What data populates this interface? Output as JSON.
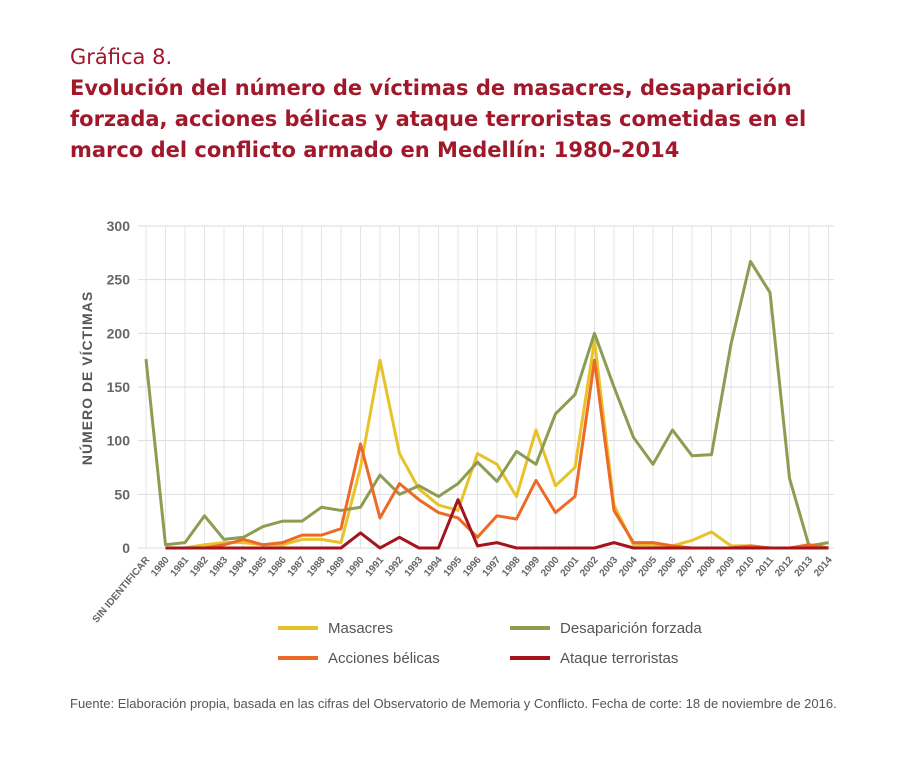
{
  "chart_data": {
    "type": "line",
    "kicker": "Gráfica 8.",
    "title": "Evolución del número de víctimas de masacres, desaparición forzada, acciones bélicas y ataque terroristas cometidas en el marco del conflicto armado en Medellín: 1980-2014",
    "y_label": "NÚMERO DE VÍCTIMAS",
    "source": "Fuente: Elaboración propia, basada en las cifras del Observatorio de Memoria y Conflicto. Fecha de corte: 18 de noviembre de 2016.",
    "categories": [
      "SIN IDENTIFICAR",
      "1980",
      "1981",
      "1982",
      "1983",
      "1984",
      "1985",
      "1986",
      "1987",
      "1988",
      "1989",
      "1990",
      "1991",
      "1992",
      "1993",
      "1994",
      "1995",
      "1996",
      "1997",
      "1998",
      "1999",
      "2000",
      "2001",
      "2002",
      "2003",
      "2004",
      "2005",
      "2006",
      "2007",
      "2008",
      "2009",
      "2010",
      "2011",
      "2012",
      "2013",
      "2014"
    ],
    "ylim": [
      0,
      300
    ],
    "yticks": [
      0,
      50,
      100,
      150,
      200,
      250,
      300
    ],
    "grid": true,
    "series": [
      {
        "name": "Masacres",
        "color": "#e8c229",
        "values": [
          null,
          0,
          0,
          3,
          5,
          5,
          3,
          3,
          8,
          8,
          5,
          75,
          175,
          88,
          55,
          40,
          35,
          88,
          78,
          48,
          110,
          58,
          75,
          193,
          40,
          3,
          3,
          2,
          7,
          15,
          2,
          2,
          0,
          0,
          2,
          0
        ]
      },
      {
        "name": "Desaparición forzada",
        "color": "#8c9d52",
        "values": [
          176,
          3,
          5,
          30,
          8,
          10,
          20,
          25,
          25,
          38,
          35,
          38,
          68,
          50,
          58,
          48,
          60,
          80,
          62,
          90,
          78,
          125,
          143,
          200,
          150,
          103,
          78,
          110,
          86,
          87,
          190,
          267,
          238,
          65,
          2,
          5
        ]
      },
      {
        "name": "Acciones bélicas",
        "color": "#ec6a25",
        "values": [
          null,
          0,
          0,
          0,
          3,
          8,
          3,
          5,
          12,
          12,
          18,
          97,
          28,
          60,
          45,
          33,
          28,
          10,
          30,
          27,
          63,
          33,
          48,
          175,
          35,
          5,
          5,
          2,
          0,
          0,
          0,
          2,
          0,
          0,
          3,
          0
        ]
      },
      {
        "name": "Ataque terroristas",
        "color": "#a3141d",
        "values": [
          null,
          0,
          0,
          0,
          0,
          0,
          0,
          0,
          0,
          0,
          0,
          14,
          0,
          10,
          0,
          0,
          45,
          2,
          5,
          0,
          0,
          0,
          0,
          0,
          5,
          0,
          0,
          0,
          0,
          0,
          0,
          0,
          0,
          0,
          0,
          0
        ]
      }
    ]
  }
}
